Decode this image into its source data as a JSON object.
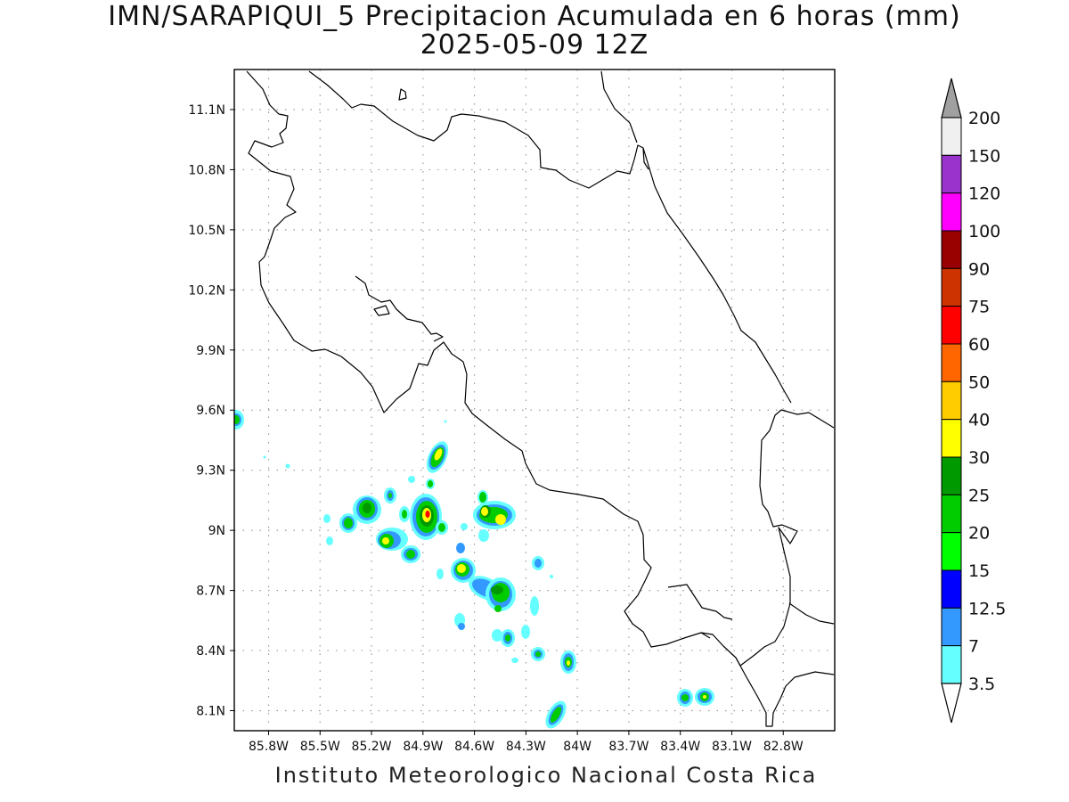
{
  "title": {
    "line1": "IMN/SARAPIQUI_5 Precipitacion Acumulada en 6 horas (mm)",
    "line2": "2025-05-09 12Z"
  },
  "footer": "Instituto Meteorologico Nacional Costa Rica",
  "map": {
    "lon_range": [
      -86.0,
      -82.5
    ],
    "lat_range": [
      8.0,
      11.3
    ],
    "y_tick_labels": [
      "11.1N",
      "10.8N",
      "10.5N",
      "10.2N",
      "9.9N",
      "9.6N",
      "9.3N",
      "9N",
      "8.7N",
      "8.4N",
      "8.1N"
    ],
    "x_tick_labels": [
      "85.8W",
      "85.5W",
      "85.2W",
      "84.9W",
      "84.6W",
      "84.3W",
      "84W",
      "83.7W",
      "83.4W",
      "83.1W",
      "82.8W"
    ],
    "grid": "dotted"
  },
  "colorbar": {
    "levels": [
      "200",
      "150",
      "120",
      "100",
      "90",
      "75",
      "60",
      "50",
      "40",
      "30",
      "25",
      "20",
      "15",
      "12.5",
      "7",
      "3.5"
    ],
    "colors": [
      "#f0f0f0",
      "#9933cc",
      "#ff00ff",
      "#990000",
      "#cc3300",
      "#ff0000",
      "#ff6600",
      "#ffcc00",
      "#ffff00",
      "#009900",
      "#00cc00",
      "#00ff00",
      "#0000ff",
      "#3399ff",
      "#66ffff"
    ],
    "top_arrow_color": "#a0a0a0",
    "bottom_arrow_color": "#ffffff"
  }
}
